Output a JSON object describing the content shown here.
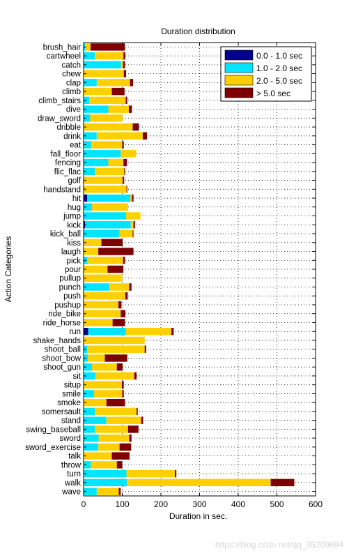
{
  "chart_data": {
    "type": "bar",
    "stacked": true,
    "orientation": "horizontal",
    "title": "Duration distribution",
    "xlabel": "Duration in sec.",
    "ylabel": "Action Categories",
    "xlim": [
      0,
      600
    ],
    "xticks": [
      0,
      100,
      200,
      300,
      400,
      500,
      600
    ],
    "grid": true,
    "legend_position": "top-right",
    "categories": [
      "brush_hair",
      "cartwheel",
      "catch",
      "chew",
      "clap",
      "climb",
      "climb_stairs",
      "dive",
      "draw_sword",
      "dribble",
      "drink",
      "eat",
      "fall_floor",
      "fencing",
      "flic_flac",
      "golf",
      "handstand",
      "hit",
      "hug",
      "jump",
      "kick",
      "kick_ball",
      "kiss",
      "laugh",
      "pick",
      "pour",
      "pullup",
      "punch",
      "push",
      "pushup",
      "ride_bike",
      "ride_horse",
      "run",
      "shake_hands",
      "shoot_ball",
      "shoot_bow",
      "shoot_gun",
      "sit",
      "situp",
      "smile",
      "smoke",
      "somersault",
      "stand",
      "swing_baseball",
      "sword",
      "sword_exercise",
      "talk",
      "throw",
      "turn",
      "walk",
      "wave"
    ],
    "series": [
      {
        "name": "0.0 - 1.0 sec",
        "color": "#00008f",
        "values": [
          0,
          0,
          0,
          0,
          0,
          0,
          0,
          0,
          0,
          0,
          0,
          0,
          0,
          0,
          0,
          0,
          0,
          9,
          0,
          0,
          4,
          0,
          0,
          0,
          0,
          0,
          0,
          0,
          0,
          0,
          0,
          0,
          12,
          0,
          0,
          0,
          0,
          0,
          0,
          0,
          0,
          0,
          0,
          0,
          0,
          0,
          0,
          0,
          0,
          0,
          0
        ]
      },
      {
        "name": "1.0 - 2.0 sec",
        "color": "#00e5ff",
        "values": [
          4,
          29,
          97,
          0,
          34,
          0,
          15,
          64,
          17,
          0,
          34,
          20,
          96,
          64,
          29,
          0,
          0,
          112,
          22,
          110,
          118,
          93,
          0,
          0,
          10,
          0,
          0,
          66,
          0,
          0,
          0,
          0,
          97,
          0,
          9,
          11,
          22,
          31,
          0,
          27,
          0,
          29,
          59,
          29,
          39,
          38,
          0,
          19,
          111,
          112,
          34
        ]
      },
      {
        "name": "2.0 - 5.0 sec",
        "color": "#ffd000",
        "values": [
          14,
          74,
          5,
          104,
          86,
          73,
          94,
          53,
          84,
          127,
          119,
          80,
          40,
          39,
          76,
          101,
          111,
          4,
          93,
          37,
          7,
          34,
          46,
          38,
          92,
          62,
          100,
          52,
          108,
          90,
          96,
          75,
          118,
          158,
          149,
          44,
          64,
          100,
          99,
          73,
          59,
          108,
          90,
          86,
          79,
          55,
          73,
          67,
          125,
          372,
          57
        ]
      },
      {
        "name": "> 5.0 sec",
        "color": "#7f0000",
        "values": [
          89,
          5,
          5,
          6,
          8,
          33,
          4,
          8,
          0,
          16,
          11,
          4,
          0,
          9,
          2,
          4,
          2,
          4,
          0,
          0,
          4,
          2,
          55,
          91,
          5,
          41,
          0,
          6,
          6,
          8,
          12,
          32,
          6,
          0,
          4,
          58,
          15,
          6,
          5,
          4,
          48,
          3,
          5,
          27,
          6,
          30,
          46,
          14,
          4,
          61,
          5
        ]
      }
    ]
  }
}
